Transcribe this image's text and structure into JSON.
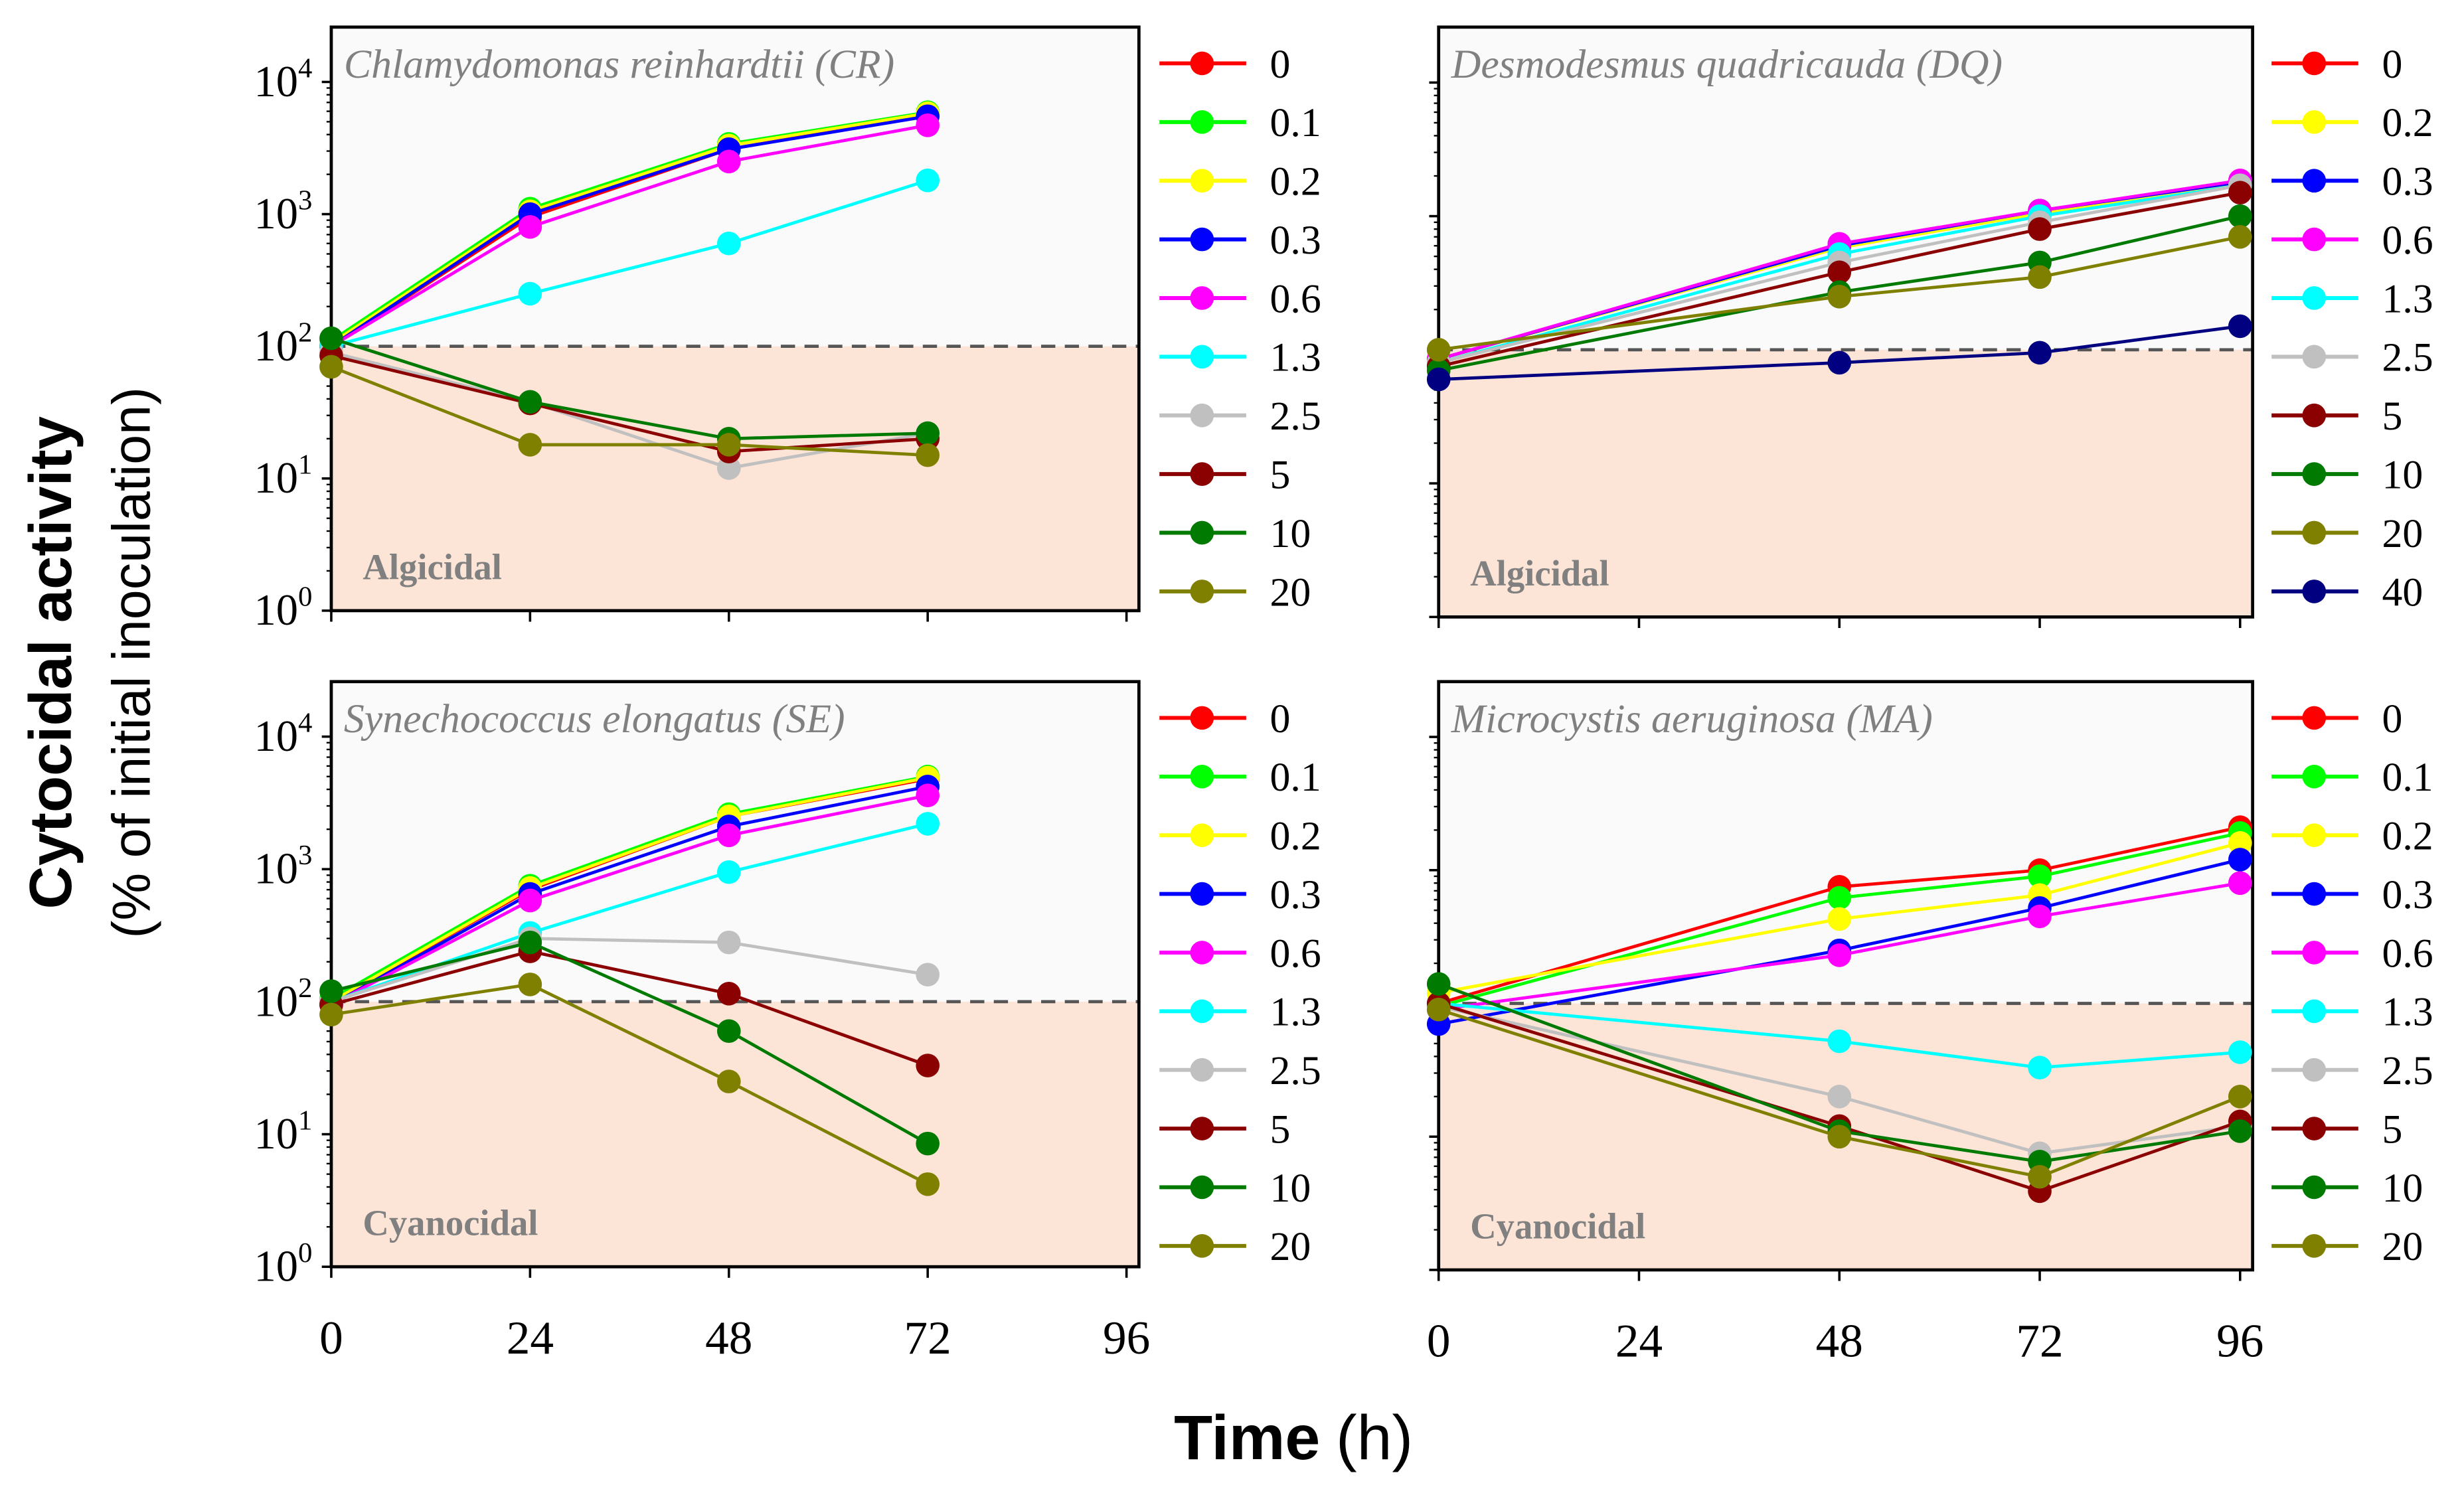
{
  "chart_data": {
    "type": "line",
    "ylabel_main": "Cytocidal activity",
    "ylabel_sub": "(% of initial inoculation)",
    "xlabel_main": "Time",
    "xlabel_unit": "(h)",
    "yscale": "log",
    "ylim": [
      1,
      26000
    ],
    "y_tick_labels": [
      {
        "base": "10",
        "exp": "0"
      },
      {
        "base": "10",
        "exp": "1"
      },
      {
        "base": "10",
        "exp": "2"
      },
      {
        "base": "10",
        "exp": "3"
      },
      {
        "base": "10",
        "exp": "4"
      }
    ],
    "x_tick_labels": [
      "0",
      "24",
      "48",
      "72",
      "96"
    ],
    "xlim": [
      0,
      97.5
    ],
    "threshold": 100,
    "colors": {
      "0": "#ff0000",
      "0.1": "#00ff00",
      "0.2": "#ffff00",
      "0.3": "#0000ff",
      "0.6": "#ff00ff",
      "1.3": "#00ffff",
      "2.5": "#c0c0c0",
      "5": "#8b0000",
      "10": "#007a00",
      "20": "#808000",
      "40": "#000080"
    },
    "region_colors": {
      "upper": "#fafafa",
      "lower": "#fce4d6"
    },
    "panels": [
      {
        "title": "Chlamydomonas reinhardtii (CR)",
        "region_label": "Algicidal",
        "x": [
          0,
          24,
          48,
          72
        ],
        "series": [
          {
            "name": "0",
            "values": [
              100,
              950,
              3100,
              5600
            ]
          },
          {
            "name": "0.1",
            "values": [
              110,
              1100,
              3400,
              5900
            ]
          },
          {
            "name": "0.2",
            "values": [
              105,
              1050,
              3300,
              5800
            ]
          },
          {
            "name": "0.3",
            "values": [
              100,
              1000,
              3100,
              5500
            ]
          },
          {
            "name": "0.6",
            "values": [
              100,
              800,
              2500,
              4700
            ]
          },
          {
            "name": "1.3",
            "values": [
              100,
              250,
              600,
              1800
            ]
          },
          {
            "name": "2.5",
            "values": [
              90,
              38,
              12,
              22
            ]
          },
          {
            "name": "5",
            "values": [
              85,
              37,
              16,
              20
            ]
          },
          {
            "name": "10",
            "values": [
              115,
              38,
              20,
              22
            ]
          },
          {
            "name": "20",
            "values": [
              70,
              18,
              18,
              15
            ]
          }
        ]
      },
      {
        "title": "Desmodesmus quadricauda (DQ)",
        "region_label": "Algicidal",
        "x": [
          0,
          48,
          72,
          96
        ],
        "series": [
          {
            "name": "0",
            "values": [
              85,
              600,
              1100,
              1800
            ]
          },
          {
            "name": "0.2",
            "values": [
              85,
              580,
              1050,
              1800
            ]
          },
          {
            "name": "0.3",
            "values": [
              85,
              600,
              1100,
              1800
            ]
          },
          {
            "name": "0.6",
            "values": [
              85,
              620,
              1100,
              1850
            ]
          },
          {
            "name": "1.3",
            "values": [
              80,
              520,
              1000,
              1700
            ]
          },
          {
            "name": "2.5",
            "values": [
              80,
              450,
              900,
              1700
            ]
          },
          {
            "name": "5",
            "values": [
              75,
              380,
              800,
              1500
            ]
          },
          {
            "name": "10",
            "values": [
              70,
              270,
              450,
              1000
            ]
          },
          {
            "name": "20",
            "values": [
              100,
              250,
              350,
              700
            ]
          },
          {
            "name": "40",
            "values": [
              60,
              80,
              95,
              150
            ]
          }
        ]
      },
      {
        "title": "Synechococcus elongatus (SE)",
        "region_label": "Cyanocidal",
        "x": [
          0,
          24,
          48,
          72
        ],
        "series": [
          {
            "name": "0",
            "values": [
              100,
              700,
              2500,
              4800
            ]
          },
          {
            "name": "0.1",
            "values": [
              105,
              750,
              2600,
              5000
            ]
          },
          {
            "name": "0.2",
            "values": [
              100,
              720,
              2500,
              4900
            ]
          },
          {
            "name": "0.3",
            "values": [
              95,
              650,
              2100,
              4200
            ]
          },
          {
            "name": "0.6",
            "values": [
              95,
              580,
              1800,
              3600
            ]
          },
          {
            "name": "1.3",
            "values": [
              100,
              330,
              950,
              2200
            ]
          },
          {
            "name": "2.5",
            "values": [
              100,
              300,
              280,
              160
            ]
          },
          {
            "name": "5",
            "values": [
              95,
              240,
              115,
              33
            ]
          },
          {
            "name": "10",
            "values": [
              120,
              280,
              60,
              8.5
            ]
          },
          {
            "name": "20",
            "values": [
              80,
              135,
              25,
              4.2
            ]
          }
        ]
      },
      {
        "title": "Microcystis aeruginosa (MA)",
        "region_label": "Cyanocidal",
        "x": [
          0,
          48,
          72,
          96
        ],
        "series": [
          {
            "name": "0",
            "values": [
              100,
              750,
              1000,
              2100
            ]
          },
          {
            "name": "0.1",
            "values": [
              95,
              620,
              900,
              1900
            ]
          },
          {
            "name": "0.2",
            "values": [
              120,
              430,
              650,
              1600
            ]
          },
          {
            "name": "0.3",
            "values": [
              70,
              250,
              520,
              1200
            ]
          },
          {
            "name": "0.6",
            "values": [
              90,
              230,
              450,
              800
            ]
          },
          {
            "name": "1.3",
            "values": [
              100,
              52,
              33,
              43
            ]
          },
          {
            "name": "2.5",
            "values": [
              95,
              20,
              7.5,
              12
            ]
          },
          {
            "name": "5",
            "values": [
              100,
              12,
              3.9,
              13
            ]
          },
          {
            "name": "10",
            "values": [
              140,
              11,
              6.5,
              11
            ]
          },
          {
            "name": "20",
            "values": [
              90,
              10,
              5,
              20
            ]
          }
        ]
      }
    ]
  }
}
